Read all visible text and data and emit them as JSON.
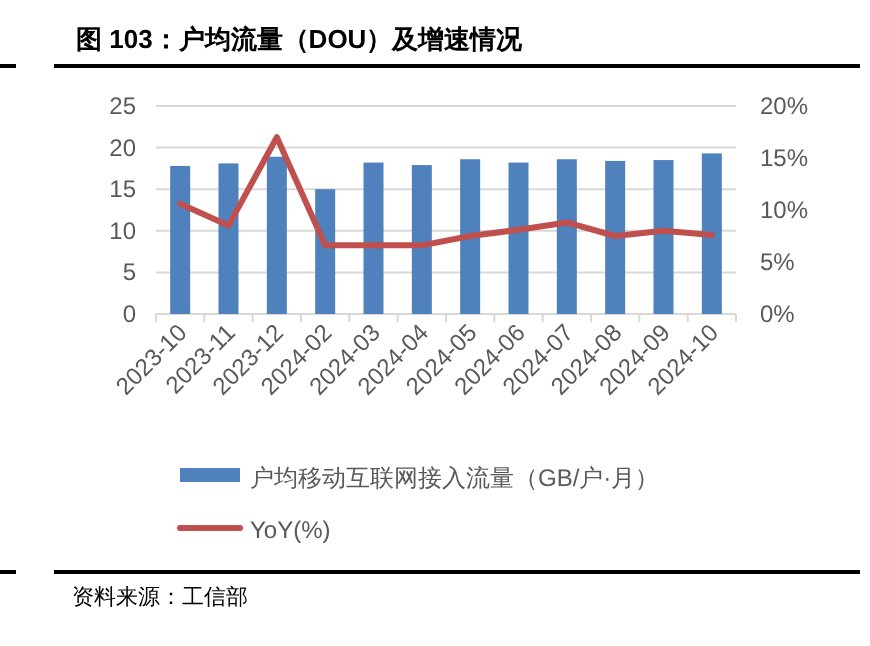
{
  "chart_data": {
    "type": "bar",
    "title": "图 103：户均流量（DOU）及增速情况",
    "categories": [
      "2023-10",
      "2023-11",
      "2023-12",
      "2024-02",
      "2024-03",
      "2024-04",
      "2024-05",
      "2024-06",
      "2024-07",
      "2024-08",
      "2024-09",
      "2024-10"
    ],
    "series": [
      {
        "name": "户均移动互联网接入流量（GB/户·月）",
        "color": "#4f81bd",
        "values": [
          17.8,
          18.1,
          18.9,
          15.0,
          18.2,
          17.9,
          18.6,
          18.2,
          18.6,
          18.4,
          18.5,
          19.3
        ]
      },
      {
        "name": "YoY(%)",
        "type": "line",
        "axis": "y2",
        "color": "#c0504d",
        "values": [
          10.6,
          8.5,
          17.0,
          6.6,
          6.6,
          6.6,
          7.5,
          8.1,
          8.8,
          7.5,
          8.0,
          7.6
        ]
      }
    ],
    "ylim": [
      0,
      25
    ],
    "yticks": [
      0,
      5,
      10,
      15,
      20,
      25
    ],
    "y2lim": [
      0,
      20
    ],
    "y2ticks": [
      {
        "value": 0,
        "label": "0%"
      },
      {
        "value": 5,
        "label": "5%"
      },
      {
        "value": 10,
        "label": "10%"
      },
      {
        "value": 15,
        "label": "15%"
      },
      {
        "value": 20,
        "label": "20%"
      }
    ],
    "grid": "y",
    "legend": "bottom",
    "marker": "none",
    "annotations": [
      "资料来源：工信部"
    ]
  }
}
